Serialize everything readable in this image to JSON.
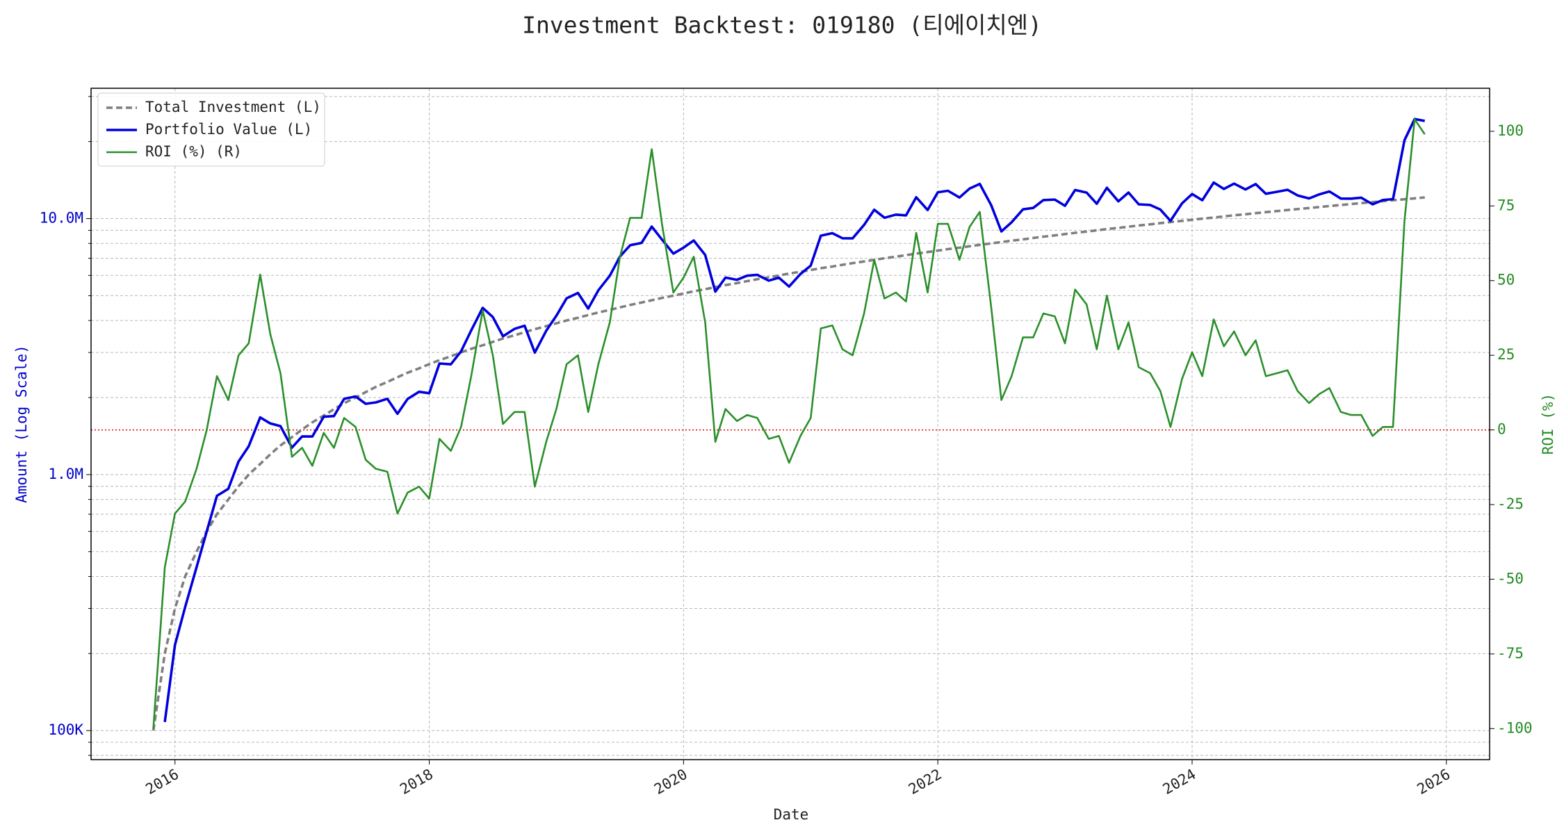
{
  "chart_data": {
    "type": "line",
    "title": "Investment Backtest: 019180 (티에이치엔)",
    "xlabel": "Date",
    "ylabel": "Amount (Log Scale)",
    "y2label": "ROI (%)",
    "yscale": "log",
    "grid": true,
    "legend": "upper left",
    "y_label_color": "#0000cc",
    "y2_label_color": "#228b22",
    "reference_line": {
      "value": 0,
      "axis": "y2",
      "color": "#dd0000"
    },
    "xlim": [
      2015.34,
      2026.34
    ],
    "xticks": [
      2016,
      2018,
      2020,
      2022,
      2024,
      2026
    ],
    "ylim": [
      77000,
      32300000
    ],
    "yticks": [
      {
        "value": 100000,
        "label": "100K"
      },
      {
        "value": 1000000,
        "label": "1.0M"
      },
      {
        "value": 10000000,
        "label": "10.0M"
      }
    ],
    "yminorticks": [
      80000,
      90000,
      200000,
      300000,
      400000,
      500000,
      600000,
      700000,
      800000,
      900000,
      2000000,
      3000000,
      4000000,
      5000000,
      6000000,
      7000000,
      8000000,
      9000000,
      20000000,
      30000000
    ],
    "y2lim": [
      -110.4,
      114.4
    ],
    "y2ticks": [
      -100,
      -75,
      -50,
      -25,
      0,
      25,
      50,
      75,
      100
    ],
    "x": [
      2015.83,
      2015.92,
      2016,
      2016.08,
      2016.17,
      2016.25,
      2016.33,
      2016.42,
      2016.5,
      2016.58,
      2016.67,
      2016.75,
      2016.83,
      2016.92,
      2017,
      2017.08,
      2017.17,
      2017.25,
      2017.33,
      2017.42,
      2017.5,
      2017.58,
      2017.67,
      2017.75,
      2017.83,
      2017.92,
      2018,
      2018.08,
      2018.17,
      2018.25,
      2018.33,
      2018.42,
      2018.5,
      2018.58,
      2018.67,
      2018.75,
      2018.83,
      2018.92,
      2019,
      2019.08,
      2019.17,
      2019.25,
      2019.33,
      2019.42,
      2019.5,
      2019.58,
      2019.67,
      2019.75,
      2019.83,
      2019.92,
      2020,
      2020.08,
      2020.17,
      2020.25,
      2020.33,
      2020.42,
      2020.5,
      2020.58,
      2020.67,
      2020.75,
      2020.83,
      2020.92,
      2021,
      2021.08,
      2021.17,
      2021.25,
      2021.33,
      2021.42,
      2021.5,
      2021.58,
      2021.67,
      2021.75,
      2021.83,
      2021.92,
      2022,
      2022.08,
      2022.17,
      2022.25,
      2022.33,
      2022.42,
      2022.5,
      2022.58,
      2022.67,
      2022.75,
      2022.83,
      2022.92,
      2023,
      2023.08,
      2023.17,
      2023.25,
      2023.33,
      2023.42,
      2023.5,
      2023.58,
      2023.67,
      2023.75,
      2023.83,
      2023.92,
      2024,
      2024.08,
      2024.17,
      2024.25,
      2024.33,
      2024.42,
      2024.5,
      2024.58,
      2024.67,
      2024.75,
      2024.83,
      2024.92,
      2025,
      2025.08,
      2025.17,
      2025.25,
      2025.33,
      2025.42,
      2025.5,
      2025.58,
      2025.67,
      2025.75,
      2025.83
    ],
    "series": [
      {
        "name": "Total Investment (L)",
        "color": "#7f7f7f",
        "dash": "dashed",
        "axis": "y",
        "values": [
          100000,
          200000,
          300000,
          400000,
          500000,
          600000,
          700000,
          800000,
          900000,
          1000000,
          1100000,
          1200000,
          1300000,
          1400000,
          1500000,
          1600000,
          1700000,
          1800000,
          1900000,
          2000000,
          2100000,
          2200000,
          2300000,
          2400000,
          2500000,
          2600000,
          2700000,
          2800000,
          2900000,
          3000000,
          3100000,
          3200000,
          3300000,
          3400000,
          3500000,
          3600000,
          3700000,
          3800000,
          3900000,
          4000000,
          4100000,
          4200000,
          4300000,
          4400000,
          4500000,
          4600000,
          4700000,
          4800000,
          4900000,
          5000000,
          5100000,
          5200000,
          5300000,
          5400000,
          5500000,
          5600000,
          5700000,
          5800000,
          5900000,
          6000000,
          6100000,
          6200000,
          6300000,
          6400000,
          6500000,
          6600000,
          6700000,
          6800000,
          6900000,
          7000000,
          7100000,
          7200000,
          7300000,
          7400000,
          7500000,
          7600000,
          7700000,
          7800000,
          7900000,
          8000000,
          8100000,
          8200000,
          8300000,
          8400000,
          8500000,
          8600000,
          8700000,
          8800000,
          8900000,
          9000000,
          9100000,
          9200000,
          9300000,
          9400000,
          9500000,
          9600000,
          9700000,
          9800000,
          9900000,
          10000000,
          10100000,
          10200000,
          10300000,
          10400000,
          10500000,
          10600000,
          10700000,
          10800000,
          10900000,
          11000000,
          11100000,
          11200000,
          11300000,
          11400000,
          11500000,
          11600000,
          11700000,
          11800000,
          11900000,
          12000000,
          12100000
        ]
      },
      {
        "name": "Portfolio Value (L)",
        "color": "#0000dd",
        "axis": "y",
        "values": [
          null,
          108000,
          216000,
          304000,
          435000,
          600000,
          826000,
          880000,
          1125000,
          1290000,
          1672000,
          1584000,
          1547000,
          1274000,
          1410000,
          1408000,
          1683000,
          1692000,
          1976000,
          2020000,
          1890000,
          1914000,
          1978000,
          1728000,
          1975000,
          2106000,
          2079000,
          2716000,
          2697000,
          3030000,
          3658000,
          4480000,
          4125000,
          3468000,
          3710000,
          3816000,
          2997000,
          3648000,
          4173000,
          4880000,
          5125000,
          4452000,
          5246000,
          5984000,
          7110000,
          7866000,
          8037000,
          9312000,
          8281000,
          7300000,
          7701000,
          8216000,
          7208000,
          5184000,
          5885000,
          5768000,
          5985000,
          6032000,
          5723000,
          5880000,
          5429000,
          6076000,
          6552000,
          8576000,
          8775000,
          8382000,
          8375000,
          9452000,
          10833000,
          10080000,
          10366000,
          10296000,
          12118000,
          10804000,
          12675000,
          12844000,
          12089000,
          13104000,
          13667000,
          11280000,
          8910000,
          9676000,
          10873000,
          11004000,
          11815000,
          11868000,
          11223000,
          12936000,
          12638000,
          11430000,
          13195000,
          11684000,
          12648000,
          11374000,
          11305000,
          10848000,
          9797000,
          11466000,
          12474000,
          11800000,
          13837000,
          13056000,
          13699000,
          13000000,
          13650000,
          12508000,
          12733000,
          12960000,
          12317000,
          11990000,
          12432000,
          12768000,
          11978000,
          11970000,
          12075000,
          11368000,
          11817000,
          11918000,
          20230000,
          24480000,
          24079000
        ]
      },
      {
        "name": "ROI (%) (R)",
        "color": "#2a8f2a",
        "axis": "y2",
        "values": [
          -100,
          -46,
          -28,
          -24,
          -13,
          0,
          18,
          10,
          25,
          29,
          52,
          32,
          19,
          -9,
          -6,
          -12,
          -1,
          -6,
          4,
          1,
          -10,
          -13,
          -14,
          -28,
          -21,
          -19,
          -23,
          -3,
          -7,
          1,
          18,
          40,
          25,
          2,
          6,
          6,
          -19,
          -4,
          7,
          22,
          25,
          6,
          22,
          36,
          58,
          71,
          71,
          94,
          69,
          46,
          51,
          58,
          36,
          -4,
          7,
          3,
          5,
          4,
          -3,
          -2,
          -11,
          -2,
          4,
          34,
          35,
          27,
          25,
          39,
          57,
          44,
          46,
          43,
          66,
          46,
          69,
          69,
          57,
          68,
          73,
          41,
          10,
          18,
          31,
          31,
          39,
          38,
          29,
          47,
          42,
          27,
          45,
          27,
          36,
          21,
          19,
          13,
          1,
          17,
          26,
          18,
          37,
          28,
          33,
          25,
          30,
          18,
          19,
          20,
          13,
          9,
          12,
          14,
          6,
          5,
          5,
          -2,
          1,
          1,
          70,
          104,
          99
        ]
      }
    ]
  }
}
